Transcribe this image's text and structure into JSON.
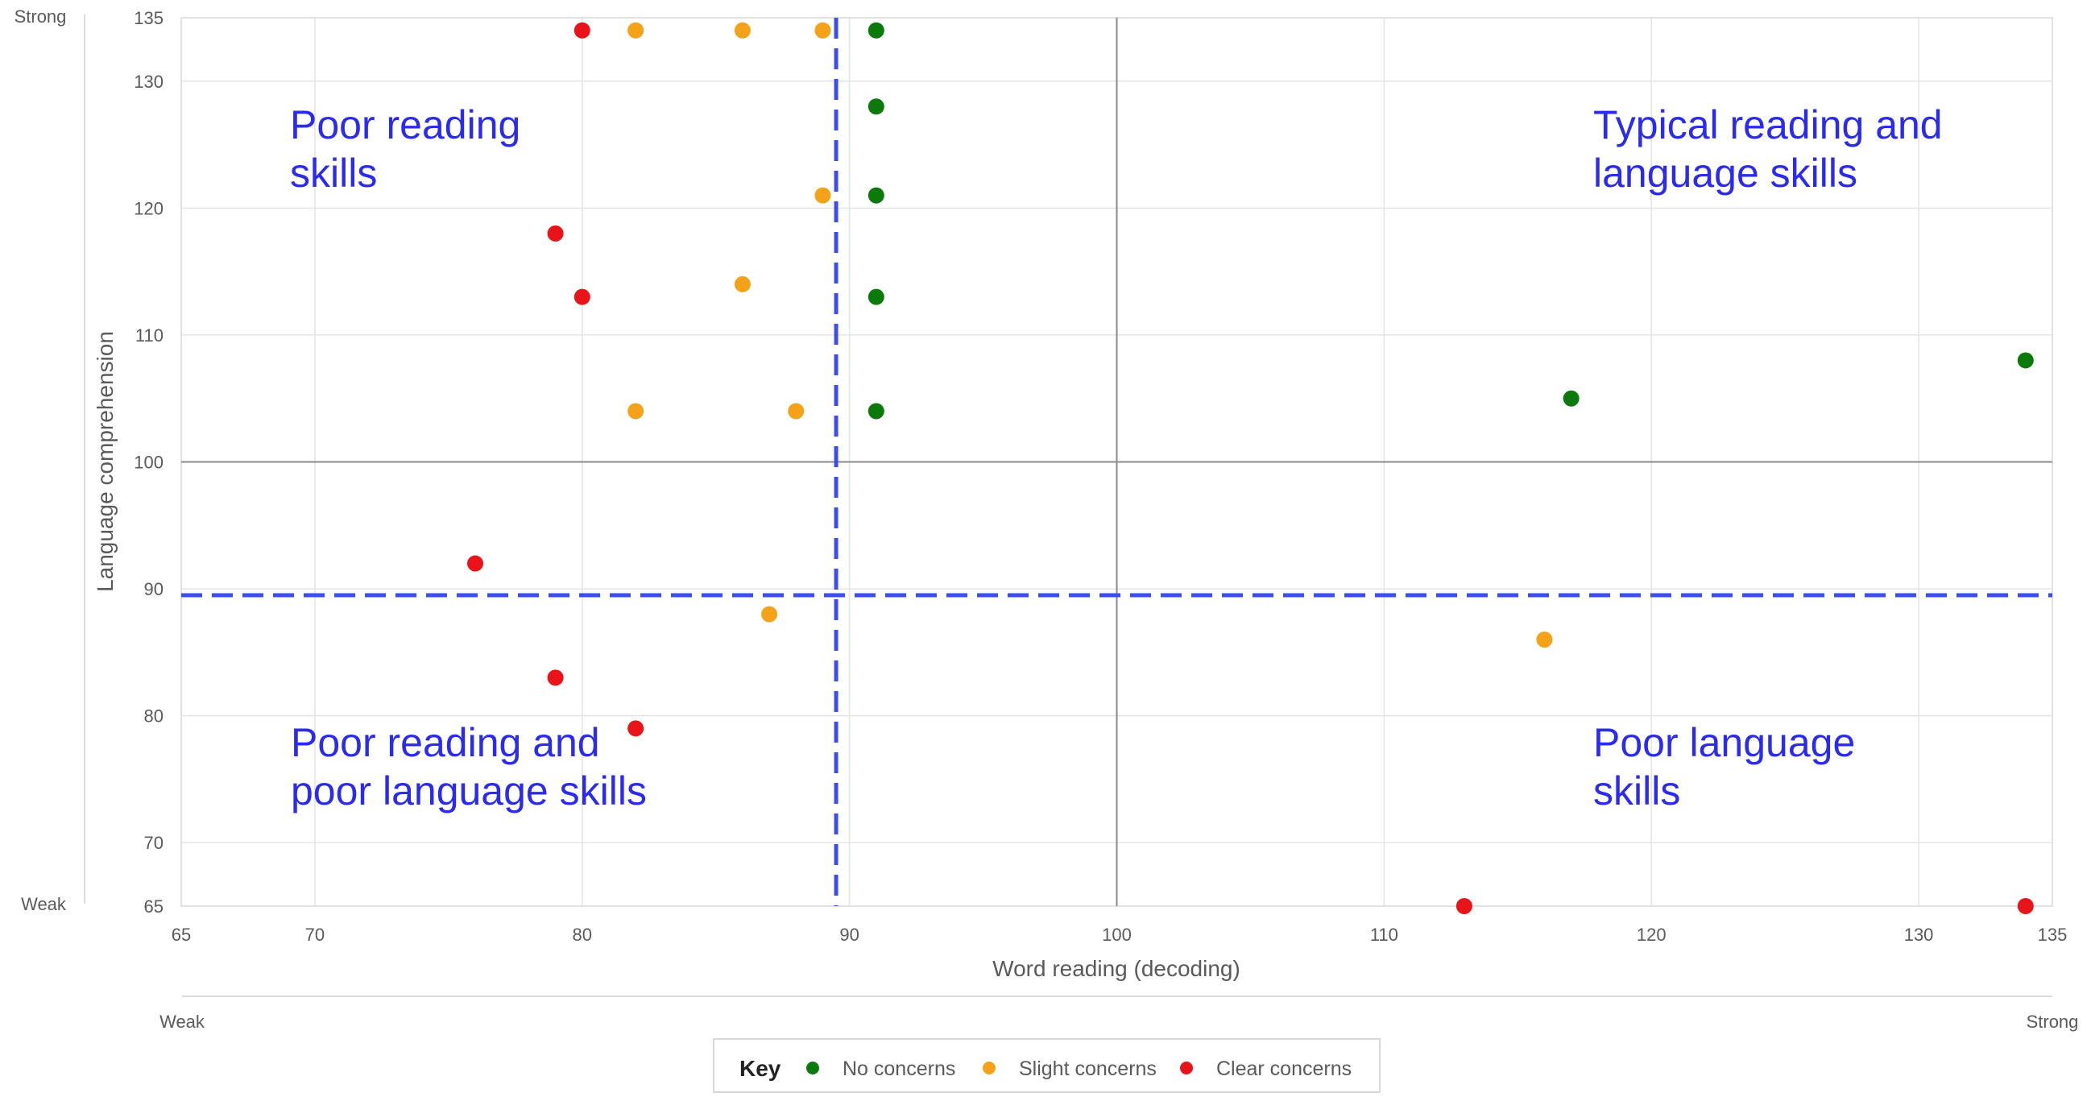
{
  "chart_data": {
    "type": "scatter",
    "xlabel": "Word reading (decoding)",
    "ylabel": "Language comprehension",
    "xlim": [
      65,
      135
    ],
    "ylim": [
      65,
      135
    ],
    "x_ticks": [
      65,
      70,
      80,
      90,
      100,
      110,
      120,
      130,
      135
    ],
    "y_ticks": [
      65,
      70,
      80,
      90,
      100,
      110,
      120,
      130,
      135
    ],
    "grid": true,
    "x_scale": {
      "low": "Weak",
      "high": "Strong"
    },
    "y_scale": {
      "low": "Weak",
      "high": "Strong"
    },
    "center_lines": {
      "x": 100,
      "y": 100
    },
    "cutoff_lines": {
      "x": 89.5,
      "y": 89.5,
      "style": "dashed",
      "color": "#3b4cf0"
    },
    "quadrant_labels": {
      "top_left": [
        "Poor reading",
        "skills"
      ],
      "top_right": [
        "Typical reading and",
        "language skills"
      ],
      "bottom_left": [
        "Poor reading and",
        "poor language skills"
      ],
      "bottom_right": [
        "Poor language",
        "skills"
      ]
    },
    "series": [
      {
        "name": "No concerns",
        "color": "#0b7a0b",
        "points": [
          [
            91,
            134
          ],
          [
            91,
            128
          ],
          [
            91,
            121
          ],
          [
            91,
            113
          ],
          [
            91,
            104
          ],
          [
            117,
            105
          ],
          [
            134,
            108
          ]
        ]
      },
      {
        "name": "Slight concerns",
        "color": "#f5a21b",
        "points": [
          [
            82,
            134
          ],
          [
            86,
            134
          ],
          [
            89,
            134
          ],
          [
            89,
            121
          ],
          [
            86,
            114
          ],
          [
            82,
            104
          ],
          [
            88,
            104
          ],
          [
            87,
            88
          ],
          [
            116,
            86
          ]
        ]
      },
      {
        "name": "Clear concerns",
        "color": "#e8141a",
        "points": [
          [
            80,
            134
          ],
          [
            79,
            118
          ],
          [
            80,
            113
          ],
          [
            76,
            92
          ],
          [
            79,
            83
          ],
          [
            82,
            79
          ],
          [
            113,
            65
          ],
          [
            134,
            65
          ]
        ]
      }
    ],
    "legend": {
      "title": "Key",
      "position": "bottom-center"
    }
  }
}
